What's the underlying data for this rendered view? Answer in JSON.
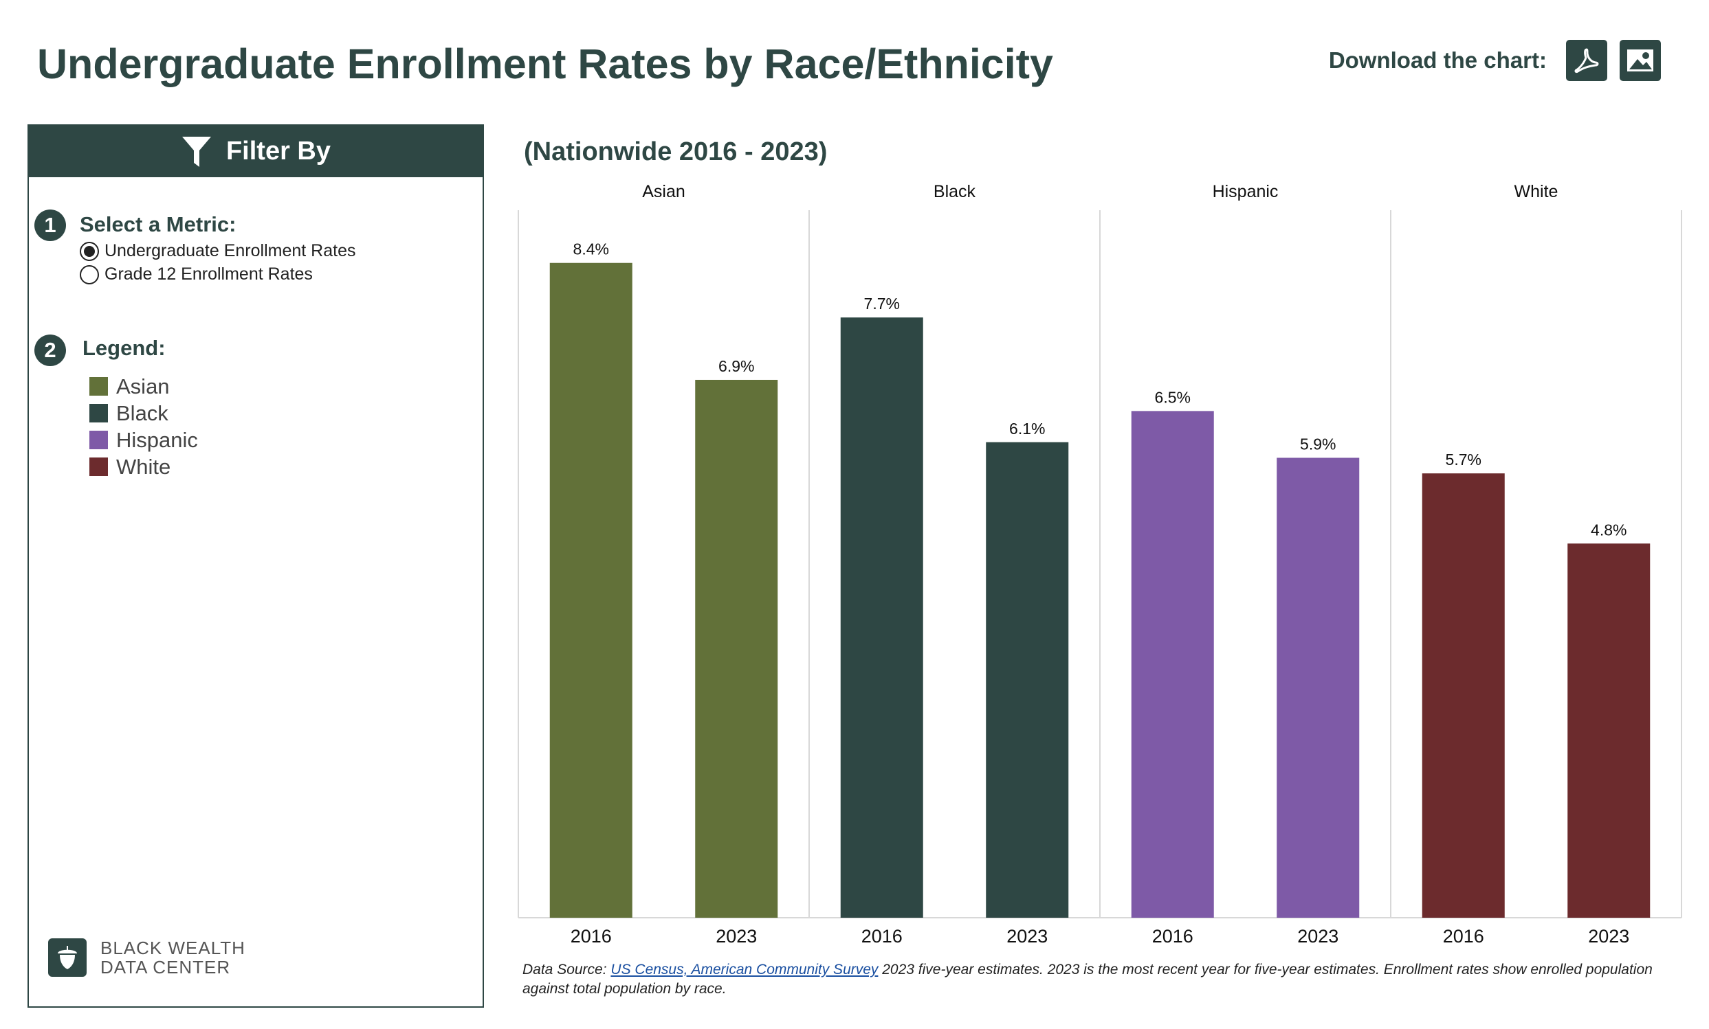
{
  "header": {
    "title": "Undergraduate Enrollment Rates by Race/Ethnicity",
    "download_label": "Download the chart:",
    "download_buttons": [
      {
        "name": "pdf",
        "icon": "pdf-icon"
      },
      {
        "name": "image",
        "icon": "image-icon"
      }
    ]
  },
  "filter_panel": {
    "header": "Filter By",
    "step1": {
      "number": "1",
      "title": "Select a Metric:",
      "options": [
        {
          "label": "Undergraduate Enrollment Rates",
          "selected": true
        },
        {
          "label": "Grade 12 Enrollment Rates",
          "selected": false
        }
      ]
    },
    "step2": {
      "number": "2",
      "title": "Legend:",
      "items": [
        {
          "label": "Asian",
          "color": "#627139"
        },
        {
          "label": "Black",
          "color": "#2e4744"
        },
        {
          "label": "Hispanic",
          "color": "#7e5aa7"
        },
        {
          "label": "White",
          "color": "#6c2b2d"
        }
      ]
    },
    "brand": {
      "line1": "BLACK WEALTH",
      "line2": "DATA CENTER"
    }
  },
  "chart_data": {
    "type": "bar",
    "title": "(Nationwide 2016 - 2023)",
    "facets": [
      "Asian",
      "Black",
      "Hispanic",
      "White"
    ],
    "categories": [
      "2016",
      "2023"
    ],
    "colors": [
      "#627139",
      "#2e4744",
      "#7e5aa7",
      "#6c2b2d"
    ],
    "series": [
      {
        "name": "Asian",
        "values": [
          8.4,
          6.9
        ],
        "labels": [
          "8.4%",
          "6.9%"
        ]
      },
      {
        "name": "Black",
        "values": [
          7.7,
          6.1
        ],
        "labels": [
          "7.7%",
          "6.1%"
        ]
      },
      {
        "name": "Hispanic",
        "values": [
          6.5,
          5.9
        ],
        "labels": [
          "6.5%",
          "5.9%"
        ]
      },
      {
        "name": "White",
        "values": [
          5.7,
          4.8
        ],
        "labels": [
          "5.7%",
          "4.8%"
        ]
      }
    ],
    "ylim": [
      0,
      8.9
    ],
    "grid": false
  },
  "source": {
    "prefix": "Data Source: ",
    "link_text": "US Census, American Community Survey",
    "suffix": " 2023 five-year estimates. 2023 is the most recent year for five-year estimates. Enrollment rates show enrolled population against total population by race."
  }
}
